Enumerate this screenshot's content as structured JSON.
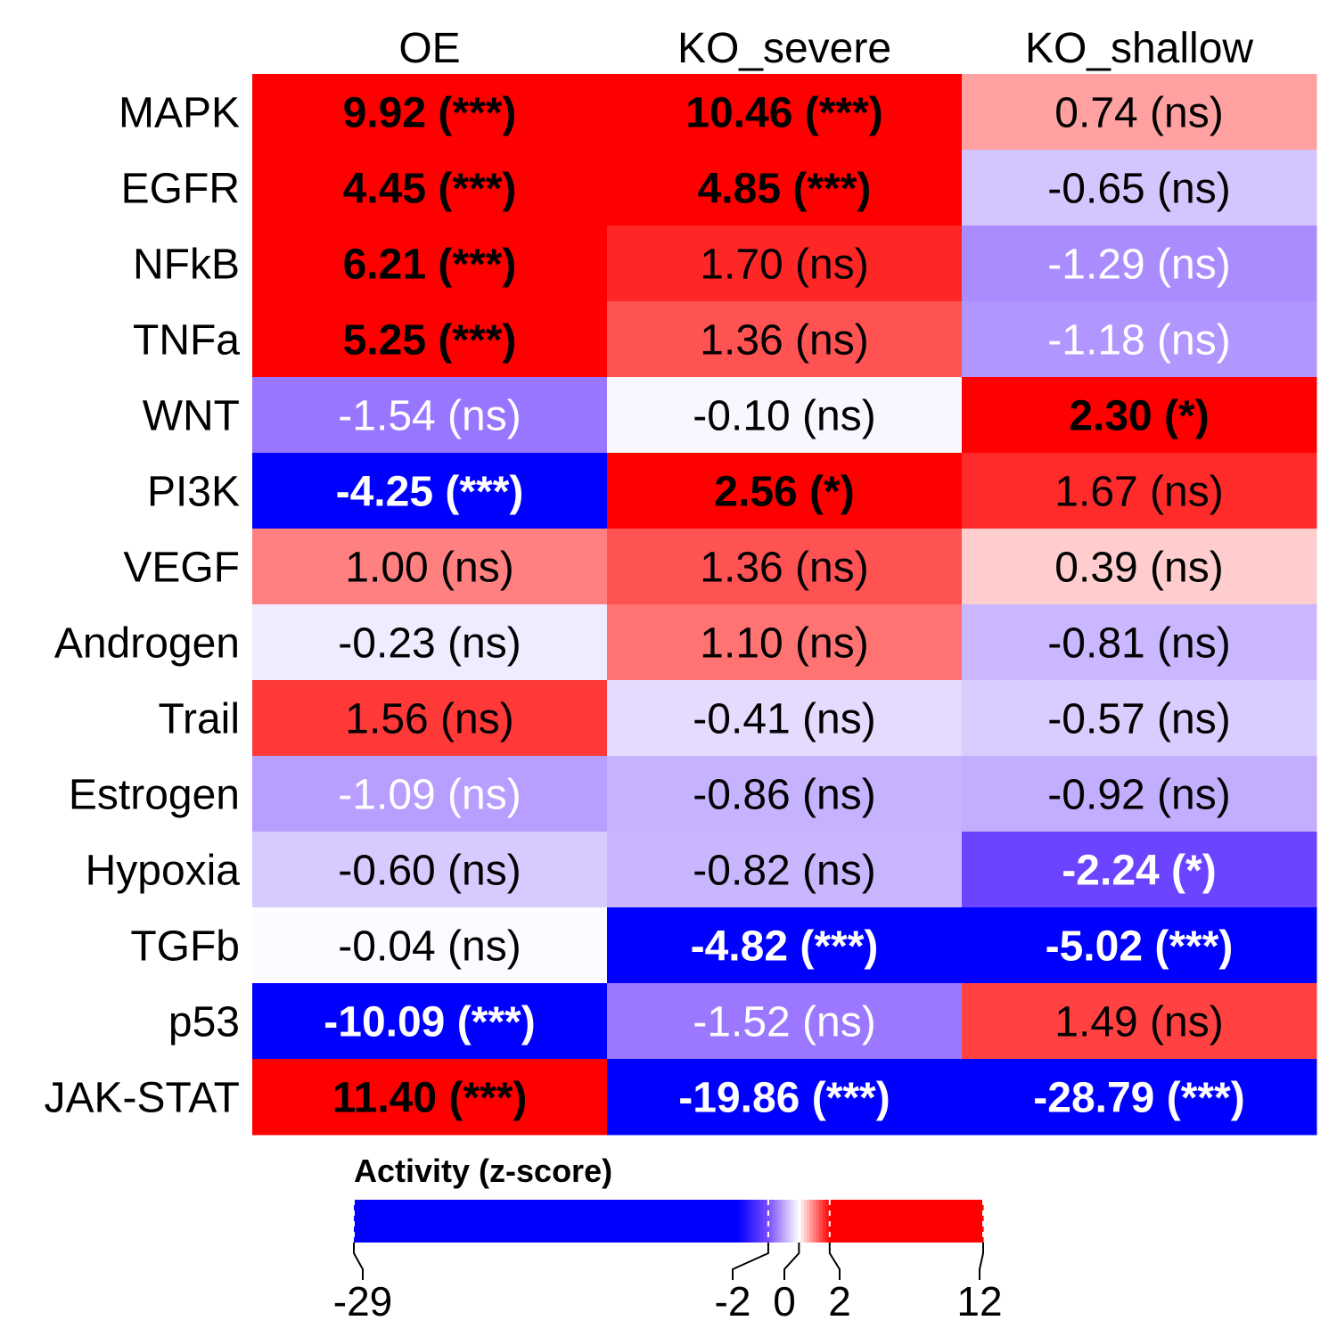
{
  "chart_data": {
    "type": "heatmap",
    "columns": [
      "OE",
      "KO_severe",
      "KO_shallow"
    ],
    "rows": [
      "MAPK",
      "EGFR",
      "NFkB",
      "TNFa",
      "WNT",
      "PI3K",
      "VEGF",
      "Androgen",
      "Trail",
      "Estrogen",
      "Hypoxia",
      "TGFb",
      "p53",
      "JAK-STAT"
    ],
    "values": [
      [
        9.92,
        10.46,
        0.74
      ],
      [
        4.45,
        4.85,
        -0.65
      ],
      [
        6.21,
        1.7,
        -1.29
      ],
      [
        5.25,
        1.36,
        -1.18
      ],
      [
        -1.54,
        -0.1,
        2.3
      ],
      [
        -4.25,
        2.56,
        1.67
      ],
      [
        1.0,
        1.36,
        0.39
      ],
      [
        -0.23,
        1.1,
        -0.81
      ],
      [
        1.56,
        -0.41,
        -0.57
      ],
      [
        -1.09,
        -0.86,
        -0.92
      ],
      [
        -0.6,
        -0.82,
        -2.24
      ],
      [
        -0.04,
        -4.82,
        -5.02
      ],
      [
        -10.09,
        -1.52,
        1.49
      ],
      [
        11.4,
        -19.86,
        -28.79
      ]
    ],
    "significance": [
      [
        "***",
        "***",
        "ns"
      ],
      [
        "***",
        "***",
        "ns"
      ],
      [
        "***",
        "ns",
        "ns"
      ],
      [
        "***",
        "ns",
        "ns"
      ],
      [
        "ns",
        "ns",
        "*"
      ],
      [
        "***",
        "*",
        "ns"
      ],
      [
        "ns",
        "ns",
        "ns"
      ],
      [
        "ns",
        "ns",
        "ns"
      ],
      [
        "ns",
        "ns",
        "ns"
      ],
      [
        "ns",
        "ns",
        "ns"
      ],
      [
        "ns",
        "ns",
        "*"
      ],
      [
        "ns",
        "***",
        "***"
      ],
      [
        "***",
        "ns",
        "ns"
      ],
      [
        "***",
        "***",
        "***"
      ]
    ],
    "cell_labels": [
      [
        "9.92 (***)",
        "10.46 (***)",
        "0.74 (ns)"
      ],
      [
        "4.45 (***)",
        "4.85 (***)",
        "-0.65 (ns)"
      ],
      [
        "6.21 (***)",
        "1.70 (ns)",
        "-1.29 (ns)"
      ],
      [
        "5.25 (***)",
        "1.36 (ns)",
        "-1.18 (ns)"
      ],
      [
        "-1.54 (ns)",
        "-0.10 (ns)",
        "2.30 (*)"
      ],
      [
        "-4.25 (***)",
        "2.56 (*)",
        "1.67 (ns)"
      ],
      [
        "1.00 (ns)",
        "1.36 (ns)",
        "0.39 (ns)"
      ],
      [
        "-0.23 (ns)",
        "1.10 (ns)",
        "-0.81 (ns)"
      ],
      [
        "1.56 (ns)",
        "-0.41 (ns)",
        "-0.57 (ns)"
      ],
      [
        "-1.09 (ns)",
        "-0.86 (ns)",
        "-0.92 (ns)"
      ],
      [
        "-0.60 (ns)",
        "-0.82 (ns)",
        "-2.24 (*)"
      ],
      [
        "-0.04 (ns)",
        "-4.82 (***)",
        "-5.02 (***)"
      ],
      [
        "-10.09 (***)",
        "-1.52 (ns)",
        "1.49 (ns)"
      ],
      [
        "11.40 (***)",
        "-19.86 (***)",
        "-28.79 (***)"
      ]
    ],
    "colorbar": {
      "title": "Activity (z-score)",
      "min": -29,
      "max": 12,
      "ticks": [
        -29,
        -2,
        0,
        2,
        12
      ],
      "tick_labels": [
        "-29",
        "-2",
        "0",
        "2",
        "12"
      ]
    },
    "colors": {
      "negative": "#0000FF",
      "mid_negative": "#7B4DFF",
      "zero": "#FFFFFF",
      "positive": "#FF0000"
    }
  }
}
